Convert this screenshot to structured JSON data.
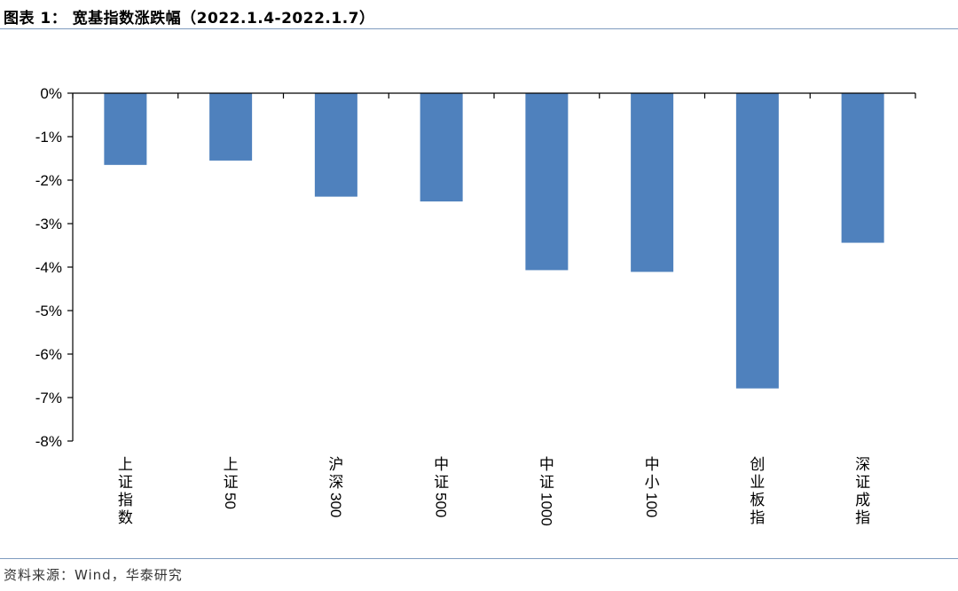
{
  "header": {
    "title": "图表 1：  宽基指数涨跌幅（2022.1.4-2022.1.7）"
  },
  "footer": {
    "source": "资料来源：Wind，华泰研究"
  },
  "colors": {
    "bar": "#4f81bd",
    "axis": "#000000",
    "rule": "#7f9bbf"
  },
  "chart_data": {
    "type": "bar",
    "categories": [
      "上证指数",
      "上证50",
      "沪深300",
      "中证500",
      "中证1000",
      "中小100",
      "创业板指",
      "深证成指"
    ],
    "values": [
      -1.65,
      -1.55,
      -2.38,
      -2.49,
      -4.07,
      -4.11,
      -6.79,
      -3.44
    ],
    "ylim": [
      -8,
      0
    ],
    "yticks": [
      0,
      -1,
      -2,
      -3,
      -4,
      -5,
      -6,
      -7,
      -8
    ],
    "ytick_labels": [
      "0%",
      "-1%",
      "-2%",
      "-3%",
      "-4%",
      "-5%",
      "-6%",
      "-7%",
      "-8%"
    ],
    "grid": false,
    "legend": "none",
    "xlabel": "",
    "ylabel": ""
  }
}
